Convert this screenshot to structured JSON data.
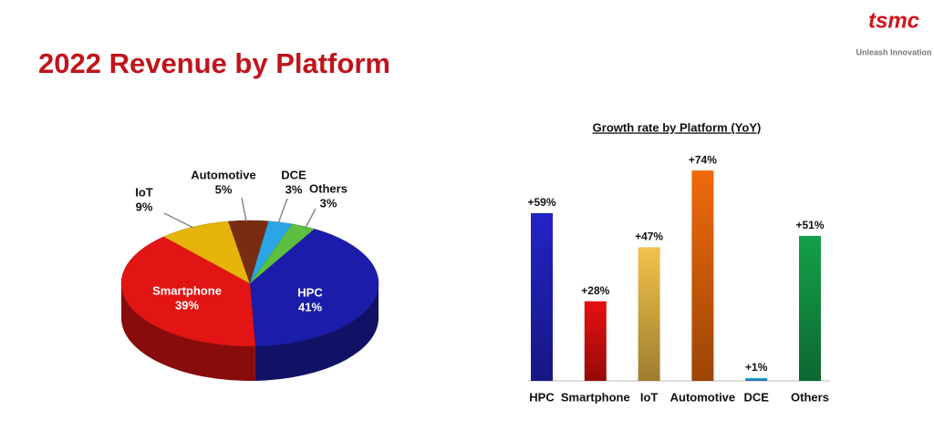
{
  "header": {
    "logo": "tsmc",
    "tagline": "Unleash Innovation"
  },
  "chart_data": [
    {
      "type": "pie",
      "title": "2022 Revenue by Platform",
      "categories": [
        "HPC",
        "Smartphone",
        "IoT",
        "Automotive",
        "DCE",
        "Others"
      ],
      "values": [
        41,
        39,
        9,
        5,
        3,
        3
      ],
      "value_labels": [
        "41%",
        "39%",
        "9%",
        "5%",
        "3%",
        "3%"
      ],
      "colors": [
        "#1c1caa",
        "#e31414",
        "#e6b40a",
        "#7a2c12",
        "#2aa6e6",
        "#5cbf42"
      ]
    },
    {
      "type": "bar",
      "title": "Growth rate by Platform (YoY)",
      "categories": [
        "HPC",
        "Smartphone",
        "IoT",
        "Automotive",
        "DCE",
        "Others"
      ],
      "values": [
        59,
        28,
        47,
        74,
        1,
        51
      ],
      "value_labels": [
        "+59%",
        "+28%",
        "+47%",
        "+74%",
        "+1%",
        "+51%"
      ],
      "colors": [
        "#2323c8",
        "#e61010",
        "#f2c24a",
        "#f06a0a",
        "#2aa6e6",
        "#14a04a"
      ]
    }
  ]
}
